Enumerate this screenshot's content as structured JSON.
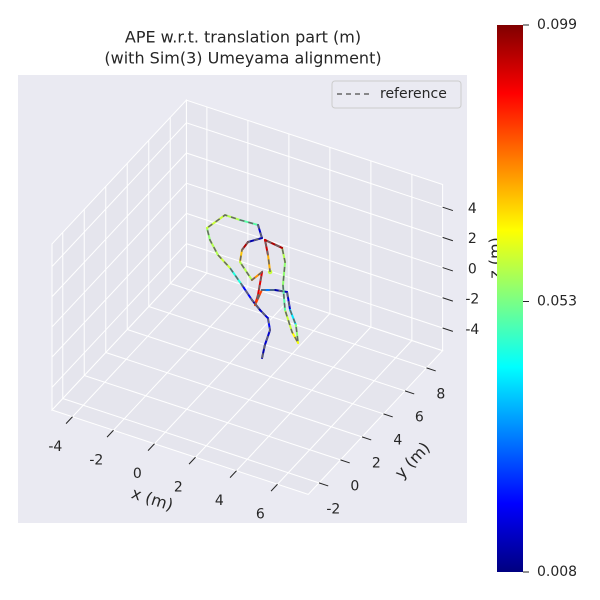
{
  "chart_data": {
    "type": "line3d",
    "title": [
      "APE w.r.t. translation part (m)",
      "(with Sim(3) Umeyama alignment)"
    ],
    "xlabel": "x (m)",
    "ylabel": "y (m)",
    "zlabel": "z (m)",
    "xlim": [
      -5,
      7.5
    ],
    "ylim": [
      -3,
      9.5
    ],
    "zlim": [
      -5.5,
      5.5
    ],
    "xticks": [
      -4,
      -2,
      0,
      2,
      4,
      6
    ],
    "yticks": [
      -2,
      0,
      2,
      4,
      6,
      8
    ],
    "zticks": [
      -4,
      -2,
      0,
      2,
      4
    ],
    "grid": true,
    "legend": "upper right",
    "series": [
      {
        "name": "reference",
        "color": "#666666",
        "x": [
          3.92,
          3.57,
          3.24,
          2.74,
          2.17,
          1.52,
          0.62,
          -0.42,
          -1.32,
          -2.14,
          -2.67,
          -2.45,
          -1.72,
          -0.87,
          -0.27,
          -0.65,
          -0.6,
          -0.25,
          0.82,
          0.92,
          1.57,
          1.81,
          1.54,
          2.03,
          2.55,
          3.29,
          4.03,
          4.74,
          4.13,
          3.1,
          2.15,
          1.43,
          0.83,
          -0.09,
          0.55,
          1.22
        ],
        "y": [
          -0.47,
          0.46,
          1.57,
          2.32,
          2.68,
          3.17,
          3.95,
          4.82,
          5.42,
          6.24,
          6.97,
          8.23,
          8.23,
          8.29,
          7.51,
          6.94,
          6.28,
          5.43,
          4.5,
          5.25,
          3.63,
          2.9,
          4.05,
          4.34,
          4.47,
          3.34,
          2.47,
          1.32,
          1.92,
          3.23,
          4.85,
          6.42,
          7.29,
          7.45,
          6.51,
          5.43
        ],
        "z": [
          0,
          0,
          0,
          0,
          0,
          0,
          0,
          0,
          0,
          0,
          0,
          0,
          0,
          0,
          0,
          0,
          0,
          0,
          0,
          0,
          0,
          0,
          0,
          0,
          0,
          0,
          0,
          0,
          0,
          0,
          0,
          0,
          0,
          0,
          0,
          0
        ]
      }
    ],
    "trajectory": {
      "x": [
        3.92,
        3.57,
        3.24,
        2.74,
        2.17,
        1.52,
        0.62,
        -0.42,
        -1.32,
        -2.14,
        -2.67,
        -2.45,
        -1.72,
        -0.87,
        -0.27,
        -0.65,
        -0.6,
        -0.25,
        0.82,
        0.92,
        1.57,
        1.81,
        1.54,
        2.03,
        2.55,
        3.29,
        4.03,
        4.74,
        4.13,
        3.1,
        2.15,
        1.43,
        0.83,
        -0.09,
        0.55,
        1.22
      ],
      "y": [
        -0.47,
        0.46,
        1.57,
        2.32,
        2.68,
        3.17,
        3.95,
        4.82,
        5.42,
        6.24,
        6.97,
        8.23,
        8.23,
        8.29,
        7.51,
        6.94,
        6.28,
        5.43,
        4.5,
        5.25,
        3.63,
        2.9,
        4.05,
        4.34,
        4.47,
        3.34,
        2.47,
        1.32,
        1.92,
        3.23,
        4.85,
        6.42,
        7.29,
        7.45,
        6.51,
        5.43
      ],
      "z": [
        0,
        0,
        0,
        0,
        0,
        0,
        0,
        0,
        0,
        0,
        0,
        0,
        0,
        0,
        0,
        0,
        0,
        0,
        0,
        0,
        0,
        0,
        0,
        0,
        0,
        0,
        0,
        0,
        0,
        0,
        0,
        0,
        0,
        0,
        0,
        0
      ],
      "error": [
        0.012,
        0.015,
        0.02,
        0.015,
        0.012,
        0.02,
        0.045,
        0.06,
        0.058,
        0.055,
        0.06,
        0.058,
        0.05,
        0.015,
        0.012,
        0.095,
        0.07,
        0.058,
        0.075,
        0.09,
        0.088,
        0.082,
        0.03,
        0.012,
        0.015,
        0.04,
        0.055,
        0.065,
        0.06,
        0.05,
        0.055,
        0.058,
        0.095,
        0.092,
        0.072,
        0.06
      ]
    },
    "colorbar": {
      "colormap": "jet",
      "clim": [
        0.008,
        0.099
      ],
      "ticks": [
        0.008,
        0.053,
        0.099
      ]
    }
  }
}
